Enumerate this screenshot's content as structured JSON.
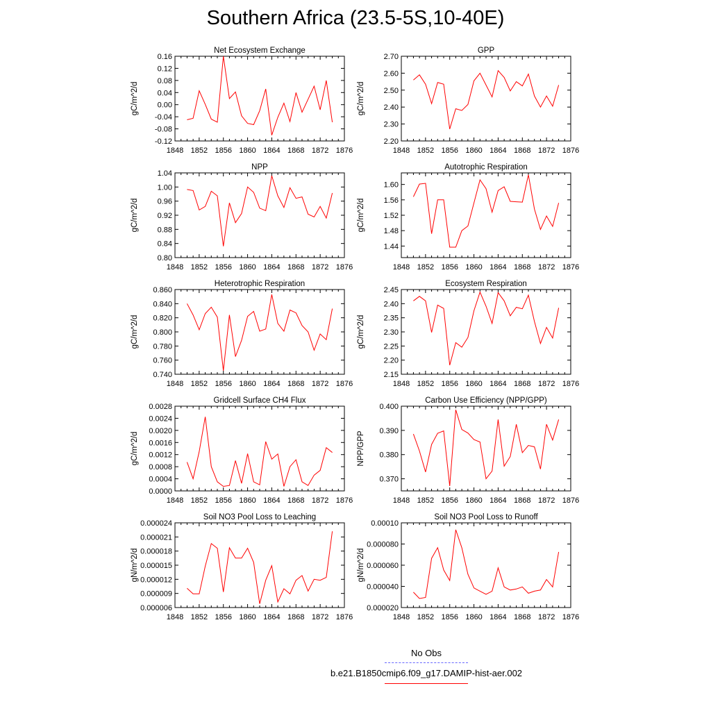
{
  "page": {
    "title": "Southern Africa (23.5-5S,10-40E)"
  },
  "legend": {
    "items": [
      {
        "label": "No Obs",
        "color": "#6666ff",
        "style": "dashed"
      },
      {
        "label": "b.e21.B1850cmip6.f09_g17.DAMIP-hist-aer.002",
        "color": "#ff0000",
        "style": "solid"
      }
    ]
  },
  "chart_data": [
    {
      "type": "line",
      "title": "Net Ecosystem Exchange",
      "ylabel": "gC/m^2/d",
      "xlim": [
        1848,
        1876
      ],
      "xticks": [
        "1848",
        "1852",
        "1856",
        "1860",
        "1864",
        "1868",
        "1872",
        "1876"
      ],
      "ylim": [
        -0.12,
        0.16
      ],
      "yticks": [
        "-0.12",
        "-0.08",
        "-0.04",
        "0.00",
        "0.04",
        "0.08",
        "0.12",
        "0.16"
      ],
      "x": [
        1850,
        1851,
        1852,
        1853,
        1854,
        1855,
        1856,
        1857,
        1858,
        1859,
        1860,
        1861,
        1862,
        1863,
        1864,
        1865,
        1866,
        1867,
        1868,
        1869,
        1870,
        1871,
        1872,
        1873,
        1874
      ],
      "series": [
        {
          "color": "#ff0000",
          "values": [
            -0.05,
            -0.045,
            0.046,
            0.001,
            -0.048,
            -0.058,
            0.16,
            0.02,
            0.042,
            -0.037,
            -0.062,
            -0.066,
            -0.02,
            0.052,
            -0.101,
            -0.042,
            0.005,
            -0.056,
            0.04,
            -0.025,
            0.018,
            0.061,
            -0.017,
            0.08,
            -0.058
          ]
        }
      ]
    },
    {
      "type": "line",
      "title": "GPP",
      "ylabel": "gC/m^2/d",
      "xlim": [
        1848,
        1876
      ],
      "xticks": [
        "1848",
        "1852",
        "1856",
        "1860",
        "1864",
        "1868",
        "1872",
        "1876"
      ],
      "ylim": [
        2.2,
        2.7
      ],
      "yticks": [
        "2.20",
        "2.30",
        "2.40",
        "2.50",
        "2.60",
        "2.70"
      ],
      "x": [
        1850,
        1851,
        1852,
        1853,
        1854,
        1855,
        1856,
        1857,
        1858,
        1859,
        1860,
        1861,
        1862,
        1863,
        1864,
        1865,
        1866,
        1867,
        1868,
        1869,
        1870,
        1871,
        1872,
        1873,
        1874
      ],
      "series": [
        {
          "color": "#ff0000",
          "values": [
            2.56,
            2.59,
            2.535,
            2.42,
            2.545,
            2.535,
            2.27,
            2.39,
            2.38,
            2.415,
            2.555,
            2.6,
            2.53,
            2.46,
            2.615,
            2.575,
            2.495,
            2.55,
            2.525,
            2.595,
            2.465,
            2.4,
            2.465,
            2.405,
            2.53
          ]
        }
      ]
    },
    {
      "type": "line",
      "title": "NPP",
      "ylabel": "gC/m^2/d",
      "xlim": [
        1848,
        1876
      ],
      "xticks": [
        "1848",
        "1852",
        "1856",
        "1860",
        "1864",
        "1868",
        "1872",
        "1876"
      ],
      "ylim": [
        0.8,
        1.04
      ],
      "yticks": [
        "0.80",
        "0.84",
        "0.88",
        "0.92",
        "0.96",
        "1.00",
        "1.04"
      ],
      "x": [
        1850,
        1851,
        1852,
        1853,
        1854,
        1855,
        1856,
        1857,
        1858,
        1859,
        1860,
        1861,
        1862,
        1863,
        1864,
        1865,
        1866,
        1867,
        1868,
        1869,
        1870,
        1871,
        1872,
        1873,
        1874
      ],
      "series": [
        {
          "color": "#ff0000",
          "values": [
            0.993,
            0.99,
            0.935,
            0.945,
            0.988,
            0.975,
            0.832,
            0.955,
            0.899,
            0.925,
            1.0,
            0.985,
            0.94,
            0.933,
            1.032,
            0.975,
            0.942,
            0.998,
            0.968,
            0.972,
            0.923,
            0.915,
            0.945,
            0.912,
            0.983
          ]
        }
      ]
    },
    {
      "type": "line",
      "title": "Autotrophic Respiration",
      "ylabel": "gC/m^2/d",
      "xlim": [
        1848,
        1876
      ],
      "xticks": [
        "1848",
        "1852",
        "1856",
        "1860",
        "1864",
        "1868",
        "1872",
        "1876"
      ],
      "ylim": [
        1.41,
        1.63
      ],
      "yticks": [
        "1.44",
        "1.48",
        "1.52",
        "1.56",
        "1.60"
      ],
      "x": [
        1850,
        1851,
        1852,
        1853,
        1854,
        1855,
        1856,
        1857,
        1858,
        1859,
        1860,
        1861,
        1862,
        1863,
        1864,
        1865,
        1866,
        1867,
        1868,
        1869,
        1870,
        1871,
        1872,
        1873,
        1874
      ],
      "series": [
        {
          "color": "#ff0000",
          "values": [
            1.568,
            1.601,
            1.603,
            1.472,
            1.56,
            1.56,
            1.437,
            1.437,
            1.48,
            1.492,
            1.552,
            1.612,
            1.589,
            1.528,
            1.584,
            1.594,
            1.556,
            1.555,
            1.554,
            1.625,
            1.536,
            1.483,
            1.518,
            1.491,
            1.552
          ]
        }
      ]
    },
    {
      "type": "line",
      "title": "Heterotrophic Respiration",
      "ylabel": "gC/m^2/d",
      "xlim": [
        1848,
        1876
      ],
      "xticks": [
        "1848",
        "1852",
        "1856",
        "1860",
        "1864",
        "1868",
        "1872",
        "1876"
      ],
      "ylim": [
        0.74,
        0.86
      ],
      "yticks": [
        "0.740",
        "0.760",
        "0.780",
        "0.800",
        "0.820",
        "0.840",
        "0.860"
      ],
      "x": [
        1850,
        1851,
        1852,
        1853,
        1854,
        1855,
        1856,
        1857,
        1858,
        1859,
        1860,
        1861,
        1862,
        1863,
        1864,
        1865,
        1866,
        1867,
        1868,
        1869,
        1870,
        1871,
        1872,
        1873,
        1874
      ],
      "series": [
        {
          "color": "#ff0000",
          "values": [
            0.84,
            0.824,
            0.803,
            0.826,
            0.835,
            0.821,
            0.745,
            0.824,
            0.765,
            0.788,
            0.822,
            0.829,
            0.801,
            0.804,
            0.853,
            0.812,
            0.801,
            0.831,
            0.827,
            0.809,
            0.8,
            0.774,
            0.797,
            0.789,
            0.833
          ]
        }
      ]
    },
    {
      "type": "line",
      "title": "Ecosystem Respiration",
      "ylabel": "gC/m^2/d",
      "xlim": [
        1848,
        1876
      ],
      "xticks": [
        "1848",
        "1852",
        "1856",
        "1860",
        "1864",
        "1868",
        "1872",
        "1876"
      ],
      "ylim": [
        2.15,
        2.45
      ],
      "yticks": [
        "2.15",
        "2.20",
        "2.25",
        "2.30",
        "2.35",
        "2.40",
        "2.45"
      ],
      "x": [
        1850,
        1851,
        1852,
        1853,
        1854,
        1855,
        1856,
        1857,
        1858,
        1859,
        1860,
        1861,
        1862,
        1863,
        1864,
        1865,
        1866,
        1867,
        1868,
        1869,
        1870,
        1871,
        1872,
        1873,
        1874
      ],
      "series": [
        {
          "color": "#ff0000",
          "values": [
            2.41,
            2.426,
            2.41,
            2.298,
            2.395,
            2.383,
            2.182,
            2.262,
            2.246,
            2.28,
            2.375,
            2.441,
            2.391,
            2.33,
            2.439,
            2.41,
            2.357,
            2.387,
            2.382,
            2.43,
            2.337,
            2.259,
            2.316,
            2.278,
            2.385
          ]
        }
      ]
    },
    {
      "type": "line",
      "title": "Gridcell Surface CH4 Flux",
      "ylabel": "gC/m^2/d",
      "xlim": [
        1848,
        1876
      ],
      "xticks": [
        "1848",
        "1852",
        "1856",
        "1860",
        "1864",
        "1868",
        "1872",
        "1876"
      ],
      "ylim": [
        0.0,
        0.0028
      ],
      "yticks": [
        "0.0000",
        "0.0004",
        "0.0008",
        "0.0012",
        "0.0016",
        "0.0020",
        "0.0024",
        "0.0028"
      ],
      "x": [
        1850,
        1851,
        1852,
        1853,
        1854,
        1855,
        1856,
        1857,
        1858,
        1859,
        1860,
        1861,
        1862,
        1863,
        1864,
        1865,
        1866,
        1867,
        1868,
        1869,
        1870,
        1871,
        1872,
        1873,
        1874
      ],
      "series": [
        {
          "color": "#ff0000",
          "values": [
            0.00095,
            0.0004,
            0.0013,
            0.00245,
            0.0008,
            0.0003,
            0.00015,
            0.00018,
            0.001,
            0.00025,
            0.00123,
            0.0003,
            0.0002,
            0.00163,
            0.00105,
            0.00122,
            0.00015,
            0.0008,
            0.00103,
            0.0003,
            0.00018,
            0.00052,
            0.00068,
            0.00143,
            0.00127
          ]
        }
      ]
    },
    {
      "type": "line",
      "title": "Carbon Use Efficiency (NPP/GPP)",
      "ylabel": "NPP/GPP",
      "xlim": [
        1848,
        1876
      ],
      "xticks": [
        "1848",
        "1852",
        "1856",
        "1860",
        "1864",
        "1868",
        "1872",
        "1876"
      ],
      "ylim": [
        0.365,
        0.4
      ],
      "yticks": [
        "0.370",
        "0.380",
        "0.390",
        "0.400"
      ],
      "x": [
        1850,
        1851,
        1852,
        1853,
        1854,
        1855,
        1856,
        1857,
        1858,
        1859,
        1860,
        1861,
        1862,
        1863,
        1864,
        1865,
        1866,
        1867,
        1868,
        1869,
        1870,
        1871,
        1872,
        1873,
        1874
      ],
      "series": [
        {
          "color": "#ff0000",
          "values": [
            0.3885,
            0.3815,
            0.3728,
            0.3842,
            0.3888,
            0.3898,
            0.367,
            0.3985,
            0.3904,
            0.3889,
            0.3862,
            0.3852,
            0.37,
            0.3732,
            0.3945,
            0.3752,
            0.3792,
            0.3925,
            0.3808,
            0.3838,
            0.3832,
            0.374,
            0.3925,
            0.386,
            0.3945
          ]
        }
      ]
    },
    {
      "type": "line",
      "title": "Soil NO3 Pool Loss to Leaching",
      "ylabel": "gN/m^2/d",
      "xlim": [
        1848,
        1876
      ],
      "xticks": [
        "1848",
        "1852",
        "1856",
        "1860",
        "1864",
        "1868",
        "1872",
        "1876"
      ],
      "ylim": [
        6e-06,
        2.4e-05
      ],
      "yticks": [
        "0.000006",
        "0.000009",
        "0.000012",
        "0.000015",
        "0.000018",
        "0.000021",
        "0.000024"
      ],
      "x": [
        1850,
        1851,
        1852,
        1853,
        1854,
        1855,
        1856,
        1857,
        1858,
        1859,
        1860,
        1861,
        1862,
        1863,
        1864,
        1865,
        1866,
        1867,
        1868,
        1869,
        1870,
        1871,
        1872,
        1873,
        1874
      ],
      "series": [
        {
          "color": "#ff0000",
          "values": [
            1.01e-05,
            8.9e-06,
            8.9e-06,
            1.48e-05,
            1.96e-05,
            1.86e-05,
            9.3e-06,
            1.87e-05,
            1.65e-05,
            1.65e-05,
            1.86e-05,
            1.56e-05,
            6.8e-06,
            1.18e-05,
            1.49e-05,
            7.2e-06,
            1e-05,
            8.9e-06,
            1.18e-05,
            1.28e-05,
            9.5e-06,
            1.2e-05,
            1.18e-05,
            1.24e-05,
            2.22e-05
          ]
        }
      ]
    },
    {
      "type": "line",
      "title": "Soil NO3 Pool Loss to Runoff",
      "ylabel": "gN/m^2/d",
      "xlim": [
        1848,
        1876
      ],
      "xticks": [
        "1848",
        "1852",
        "1856",
        "1860",
        "1864",
        "1868",
        "1872",
        "1876"
      ],
      "ylim": [
        2e-05,
        0.0001
      ],
      "yticks": [
        "0.000020",
        "0.000040",
        "0.000060",
        "0.000080",
        "0.00010"
      ],
      "x": [
        1850,
        1851,
        1852,
        1853,
        1854,
        1855,
        1856,
        1857,
        1858,
        1859,
        1860,
        1861,
        1862,
        1863,
        1864,
        1865,
        1866,
        1867,
        1868,
        1869,
        1870,
        1871,
        1872,
        1873,
        1874
      ],
      "series": [
        {
          "color": "#ff0000",
          "values": [
            3.45e-05,
            2.85e-05,
            2.95e-05,
            6.65e-05,
            7.65e-05,
            5.55e-05,
            4.55e-05,
            9.35e-05,
            7.65e-05,
            5.15e-05,
            3.85e-05,
            3.55e-05,
            3.25e-05,
            3.55e-05,
            5.75e-05,
            3.95e-05,
            3.65e-05,
            3.75e-05,
            3.95e-05,
            3.35e-05,
            3.55e-05,
            3.65e-05,
            4.65e-05,
            3.95e-05,
            7.25e-05
          ]
        }
      ]
    }
  ]
}
